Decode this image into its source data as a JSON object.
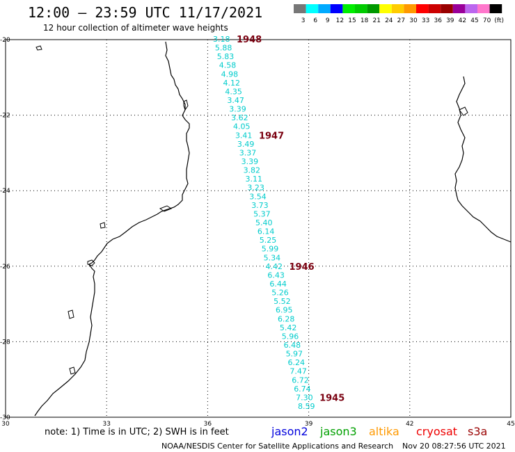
{
  "header": {
    "title": "12:00 – 23:59 UTC 11/17/2021",
    "subtitle": "12 hour collection of altimeter wave heights"
  },
  "color_scale": {
    "colors": [
      "#777777",
      "#00ffff",
      "#00aaff",
      "#0000ff",
      "#00ee00",
      "#00cc00",
      "#009900",
      "#ffff00",
      "#ffcc00",
      "#ff9900",
      "#ff0000",
      "#cc0000",
      "#990000",
      "#990099",
      "#bb66ee",
      "#ff77cc",
      "#000000"
    ],
    "labels": [
      "3",
      "6",
      "9",
      "12",
      "15",
      "18",
      "21",
      "24",
      "27",
      "30",
      "33",
      "36",
      "39",
      "42",
      "45",
      "70",
      "(ft)"
    ]
  },
  "map": {
    "lon_range": [
      30,
      45
    ],
    "lat_range": [
      -30,
      -20
    ],
    "lat_labels": [
      "-20",
      "-22",
      "-24",
      "-26",
      "-28",
      "-30"
    ],
    "lon_labels": [
      "30",
      "33",
      "36",
      "39",
      "42",
      "45"
    ]
  },
  "track": {
    "swh_color": "#00cccc",
    "swh_values": [
      "3.18",
      "5.88",
      "5.83",
      "4.58",
      "4.98",
      "4.12",
      "4.35",
      "3.47",
      "3.39",
      "3.62",
      "4.05",
      "3.41",
      "3.49",
      "3.37",
      "3.39",
      "3.82",
      "3.11",
      "3.23",
      "3.54",
      "3.73",
      "5.37",
      "5.40",
      "6.14",
      "5.25",
      "5.99",
      "5.34",
      "4.42",
      "6.43",
      "6.44",
      "5.26",
      "5.52",
      "6.95",
      "6.28",
      "5.42",
      "5.96",
      "6.48",
      "5.97",
      "6.24",
      "7.47",
      "6.72",
      "6.74",
      "7.30",
      "8.59"
    ],
    "pass_times": [
      "1948",
      "1947",
      "1946",
      "1945"
    ]
  },
  "footer": {
    "note": "note:  1) Time is in UTC;  2) SWH is in feet",
    "missions": [
      {
        "name": "jason2",
        "color": "#0000dd"
      },
      {
        "name": "jason3",
        "color": "#00a000"
      },
      {
        "name": "altika",
        "color": "#ff9900"
      },
      {
        "name": "cryosat",
        "color": "#ee0000"
      },
      {
        "name": "s3a",
        "color": "#990000"
      }
    ],
    "credit": "NOAA/NESDIS Center for Satellite Applications and Research",
    "timestamp": "Nov 20 08:27:56 UTC 2021"
  }
}
